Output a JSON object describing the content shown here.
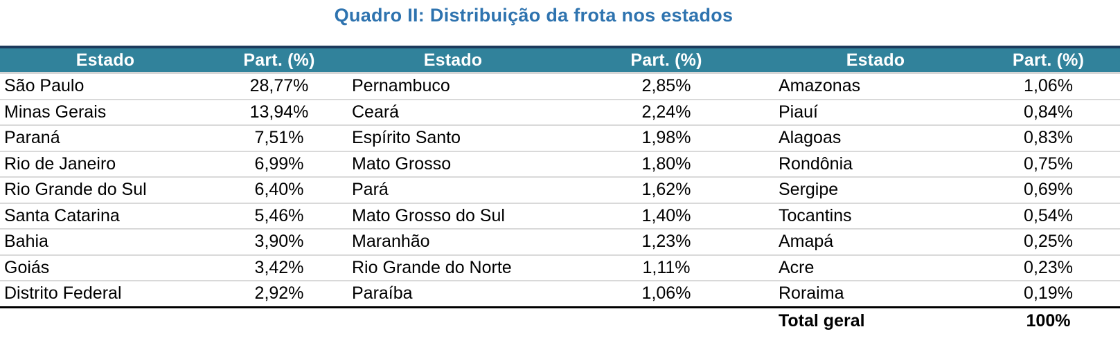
{
  "title": "Quadro II: Distribuição da frota nos estados",
  "columns": [
    "Estado",
    "Part. (%)",
    "Estado",
    "Part. (%)",
    "Estado",
    "Part. (%)"
  ],
  "rows": [
    [
      "São Paulo",
      "28,77%",
      "Pernambuco",
      "2,85%",
      "Amazonas",
      "1,06%"
    ],
    [
      "Minas Gerais",
      "13,94%",
      "Ceará",
      "2,24%",
      "Piauí",
      "0,84%"
    ],
    [
      "Paraná",
      "7,51%",
      "Espírito Santo",
      "1,98%",
      "Alagoas",
      "0,83%"
    ],
    [
      "Rio de Janeiro",
      "6,99%",
      "Mato Grosso",
      "1,80%",
      "Rondônia",
      "0,75%"
    ],
    [
      "Rio Grande do Sul",
      "6,40%",
      "Pará",
      "1,62%",
      "Sergipe",
      "0,69%"
    ],
    [
      "Santa Catarina",
      "5,46%",
      "Mato Grosso do Sul",
      "1,40%",
      "Tocantins",
      "0,54%"
    ],
    [
      "Bahia",
      "3,90%",
      "Maranhão",
      "1,23%",
      "Amapá",
      "0,25%"
    ],
    [
      "Goiás",
      "3,42%",
      "Rio Grande do Norte",
      "1,11%",
      "Acre",
      "0,23%"
    ],
    [
      "Distrito Federal",
      "2,92%",
      "Paraíba",
      "1,06%",
      "Roraima",
      "0,19%"
    ]
  ],
  "total": {
    "label": "Total geral",
    "value": "100%"
  },
  "colors": {
    "title_blue": "#2E73AF",
    "header_teal": "#31829B",
    "header_top_border": "#1C3A5C",
    "row_separator": "#D9D9D9",
    "strong_border": "#000000"
  }
}
